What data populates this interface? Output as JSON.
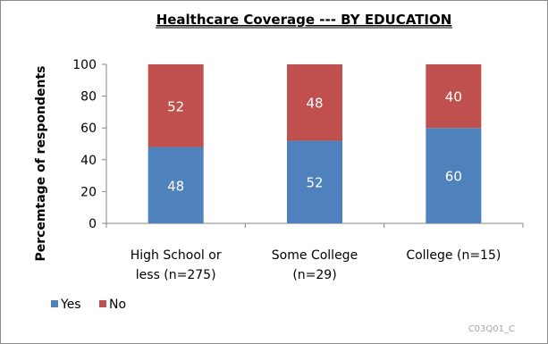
{
  "chart_data": {
    "type": "bar",
    "stacked": true,
    "title": "Healthcare Coverage --- BY EDUCATION",
    "ylabel": "Percemtage of respondents",
    "xlabel": "",
    "ylim": [
      0,
      100
    ],
    "yticks": [
      "0",
      "20",
      "40",
      "60",
      "80",
      "100"
    ],
    "categories": [
      [
        "High School or",
        "less (n=275)"
      ],
      [
        "Some College",
        "(n=29)"
      ],
      [
        "College (n=15)"
      ]
    ],
    "series": [
      {
        "name": "Yes",
        "color": "#4f81bd",
        "values": [
          48,
          52,
          60
        ]
      },
      {
        "name": "No",
        "color": "#c0504d",
        "values": [
          52,
          48,
          40
        ]
      }
    ],
    "legend_position": "bottom-left",
    "grid": false
  },
  "footer_code": "C03Q01_C"
}
